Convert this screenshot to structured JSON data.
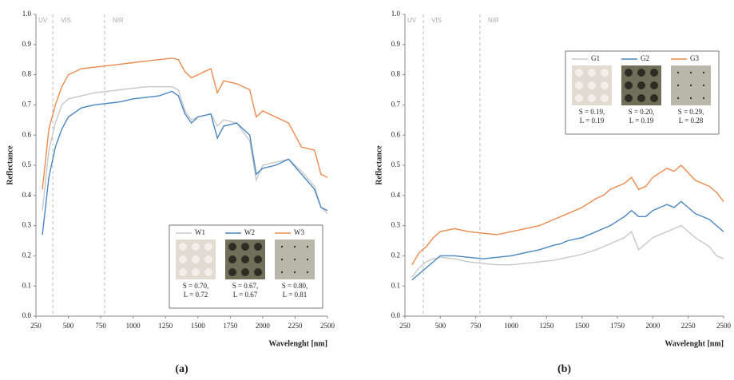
{
  "chart_data": [
    {
      "type": "line",
      "caption": "(a)",
      "x_label": "Wavelenght [nm]",
      "y_label": "Reflectance",
      "xlim": [
        250,
        2500
      ],
      "xticks": [
        250,
        500,
        750,
        1000,
        1250,
        1500,
        1750,
        2000,
        2250,
        2500
      ],
      "ylim": [
        0,
        1
      ],
      "yticks": [
        {
          "value": 0,
          "label": "0.0"
        },
        0.1,
        0.2,
        0.3,
        0.4,
        0.5,
        0.6,
        0.7,
        0.8,
        0.9,
        {
          "value": 1,
          "label": "1.0"
        }
      ],
      "annotations": [
        "UV",
        "VIS",
        "NIR"
      ],
      "region_lines": [
        380,
        780
      ],
      "legend": "lower right",
      "x": [
        300,
        350,
        400,
        450,
        500,
        600,
        700,
        800,
        900,
        1000,
        1100,
        1200,
        1300,
        1350,
        1400,
        1450,
        1500,
        1600,
        1650,
        1700,
        1800,
        1900,
        1950,
        2000,
        2100,
        2200,
        2300,
        2400,
        2450,
        2500
      ],
      "series": [
        {
          "name": "W1",
          "color": "#c8c8c8",
          "note": [
            "S = 0.70,",
            "L = 0.72"
          ],
          "values": [
            0.35,
            0.55,
            0.64,
            0.7,
            0.72,
            0.73,
            0.74,
            0.745,
            0.75,
            0.755,
            0.76,
            0.76,
            0.76,
            0.75,
            0.68,
            0.65,
            0.66,
            0.67,
            0.63,
            0.65,
            0.64,
            0.58,
            0.45,
            0.5,
            0.51,
            0.52,
            0.48,
            0.43,
            0.36,
            0.34
          ]
        },
        {
          "name": "W2",
          "color": "#4a86c0",
          "note": [
            "S = 0.67,",
            "L = 0.67"
          ],
          "values": [
            0.27,
            0.46,
            0.56,
            0.62,
            0.66,
            0.69,
            0.7,
            0.705,
            0.71,
            0.72,
            0.725,
            0.73,
            0.745,
            0.73,
            0.67,
            0.64,
            0.66,
            0.67,
            0.59,
            0.63,
            0.64,
            0.6,
            0.47,
            0.49,
            0.5,
            0.52,
            0.47,
            0.42,
            0.36,
            0.35
          ]
        },
        {
          "name": "W3",
          "color": "#ed8a4c",
          "note": [
            "S = 0.80,",
            "L = 0.81"
          ],
          "values": [
            0.42,
            0.62,
            0.7,
            0.76,
            0.8,
            0.82,
            0.825,
            0.83,
            0.835,
            0.84,
            0.845,
            0.85,
            0.855,
            0.85,
            0.81,
            0.79,
            0.8,
            0.82,
            0.74,
            0.78,
            0.77,
            0.75,
            0.66,
            0.68,
            0.66,
            0.64,
            0.56,
            0.55,
            0.47,
            0.46
          ]
        }
      ]
    },
    {
      "type": "line",
      "caption": "(b)",
      "x_label": "Wavelenght [nm]",
      "y_label": "Reflectance",
      "xlim": [
        250,
        2500
      ],
      "xticks": [
        250,
        500,
        750,
        1000,
        1250,
        1500,
        1750,
        2000,
        2250,
        2500
      ],
      "ylim": [
        0,
        1
      ],
      "yticks": [
        {
          "value": 0,
          "label": "0.0"
        },
        0.1,
        0.2,
        0.3,
        0.4,
        0.5,
        0.6,
        0.7,
        0.8,
        0.9,
        {
          "value": 1,
          "label": "1.0"
        }
      ],
      "annotations": [
        "UV",
        "VIS",
        "NIR"
      ],
      "region_lines": [
        380,
        780
      ],
      "legend": "upper right",
      "x": [
        300,
        350,
        400,
        450,
        500,
        600,
        700,
        800,
        900,
        1000,
        1100,
        1200,
        1300,
        1350,
        1400,
        1450,
        1500,
        1600,
        1650,
        1700,
        1800,
        1850,
        1900,
        1950,
        2000,
        2100,
        2150,
        2200,
        2300,
        2400,
        2450,
        2500
      ],
      "series": [
        {
          "name": "G1",
          "color": "#c8c8c8",
          "note": [
            "S = 0.19,",
            "L = 0.19"
          ],
          "values": [
            0.13,
            0.16,
            0.18,
            0.19,
            0.195,
            0.19,
            0.18,
            0.175,
            0.17,
            0.17,
            0.175,
            0.18,
            0.185,
            0.19,
            0.195,
            0.2,
            0.205,
            0.22,
            0.23,
            0.24,
            0.26,
            0.28,
            0.22,
            0.24,
            0.26,
            0.28,
            0.29,
            0.3,
            0.26,
            0.23,
            0.2,
            0.19
          ]
        },
        {
          "name": "G2",
          "color": "#4a86c0",
          "note": [
            "S = 0.20,",
            "L = 0.19"
          ],
          "values": [
            0.12,
            0.14,
            0.16,
            0.18,
            0.2,
            0.2,
            0.195,
            0.19,
            0.195,
            0.2,
            0.21,
            0.22,
            0.235,
            0.24,
            0.25,
            0.255,
            0.26,
            0.28,
            0.29,
            0.3,
            0.33,
            0.35,
            0.33,
            0.33,
            0.35,
            0.37,
            0.36,
            0.38,
            0.34,
            0.32,
            0.3,
            0.28
          ]
        },
        {
          "name": "G3",
          "color": "#ed8a4c",
          "note": [
            "S = 0.29,",
            "L = 0.28"
          ],
          "values": [
            0.17,
            0.21,
            0.23,
            0.26,
            0.28,
            0.29,
            0.28,
            0.275,
            0.27,
            0.28,
            0.29,
            0.3,
            0.32,
            0.33,
            0.34,
            0.35,
            0.36,
            0.39,
            0.4,
            0.42,
            0.44,
            0.46,
            0.42,
            0.43,
            0.46,
            0.49,
            0.48,
            0.5,
            0.45,
            0.43,
            0.41,
            0.38
          ]
        }
      ]
    }
  ]
}
